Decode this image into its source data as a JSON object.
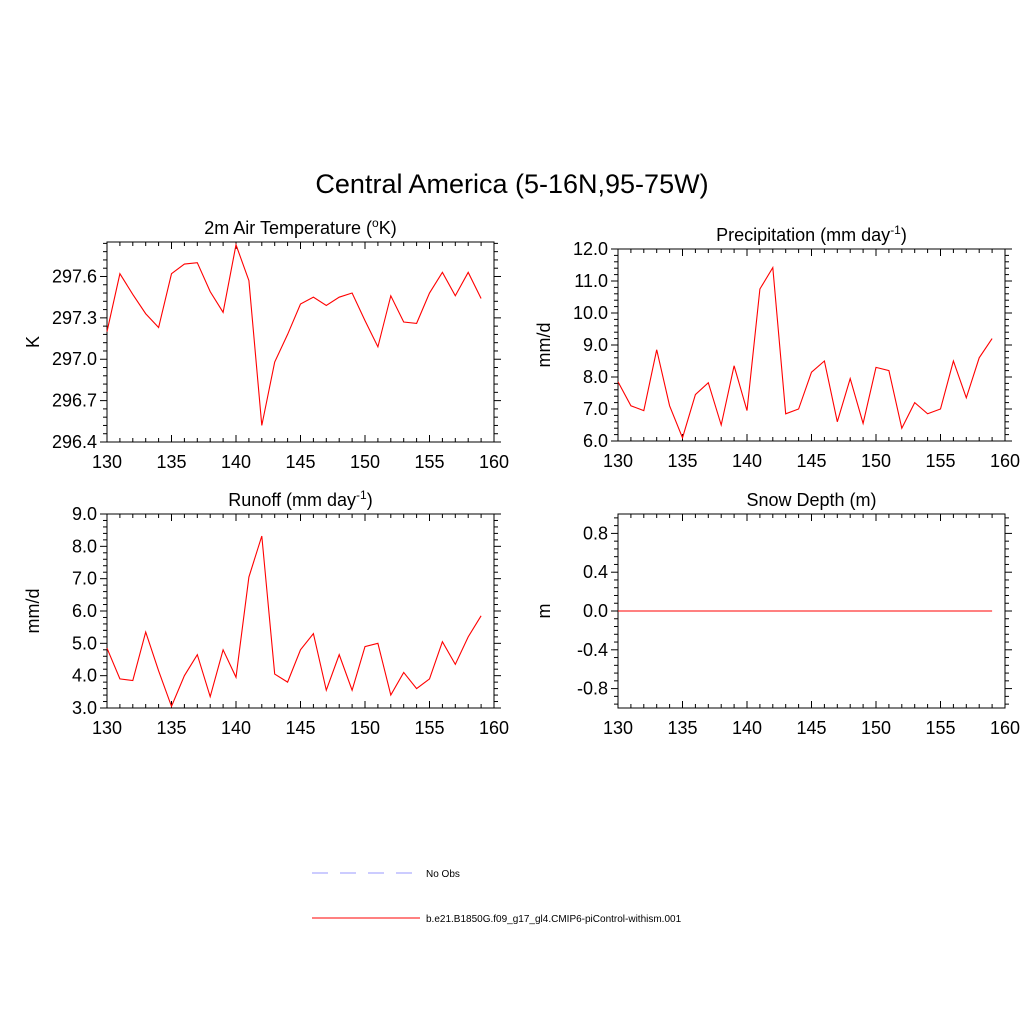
{
  "figure": {
    "title": "Central America (5-16N,95-75W)"
  },
  "legend": {
    "items": [
      {
        "label": "No Obs",
        "color": "#9999ff",
        "dash": "dashed"
      },
      {
        "label": "b.e21.B1850G.f09_g17_gl4.CMIP6-piControl-withism.001",
        "color": "#ff0000",
        "dash": "solid"
      }
    ]
  },
  "chart_data": [
    {
      "type": "line",
      "title": "2m Air Temperature (oK)",
      "title_parts": [
        "2m Air Temperature (",
        "o",
        "K)"
      ],
      "ylabel": "K",
      "xlim": [
        130,
        160
      ],
      "ylim": [
        296.4,
        297.85
      ],
      "xticks": [
        130,
        135,
        140,
        145,
        150,
        155,
        160
      ],
      "xticklabels": [
        "130",
        "135",
        "140",
        "145",
        "150",
        "155",
        "160"
      ],
      "yticks": [
        296.4,
        296.7,
        297.0,
        297.3,
        297.6
      ],
      "yticklabels": [
        "296.4",
        "296.7",
        "297.0",
        "297.3",
        "297.6"
      ],
      "series": [
        {
          "color": "#ff0000",
          "x": [
            130,
            131,
            132,
            133,
            134,
            135,
            136,
            137,
            138,
            139,
            140,
            141,
            142,
            143,
            144,
            145,
            146,
            147,
            148,
            149,
            150,
            151,
            152,
            153,
            154,
            155,
            156,
            157,
            158,
            159
          ],
          "y": [
            297.2,
            297.62,
            297.47,
            297.33,
            297.23,
            297.62,
            297.69,
            297.7,
            297.49,
            297.34,
            297.83,
            297.57,
            296.52,
            296.98,
            297.18,
            297.4,
            297.45,
            297.39,
            297.45,
            297.48,
            297.28,
            297.09,
            297.46,
            297.27,
            297.26,
            297.48,
            297.63,
            297.46,
            297.63,
            297.44
          ]
        }
      ]
    },
    {
      "type": "line",
      "title": "Precipitation (mm day-1)",
      "title_parts": [
        "Precipitation (mm day",
        "-1",
        ")"
      ],
      "ylabel": "mm/d",
      "xlim": [
        130,
        160
      ],
      "ylim": [
        6.0,
        12.0
      ],
      "xticks": [
        130,
        135,
        140,
        145,
        150,
        155,
        160
      ],
      "xticklabels": [
        "130",
        "135",
        "140",
        "145",
        "150",
        "155",
        "160"
      ],
      "yticks": [
        6.0,
        7.0,
        8.0,
        9.0,
        10.0,
        11.0,
        12.0
      ],
      "yticklabels": [
        "6.0",
        "7.0",
        "8.0",
        "9.0",
        "10.0",
        "11.0",
        "12.0"
      ],
      "series": [
        {
          "color": "#ff0000",
          "x": [
            130,
            131,
            132,
            133,
            134,
            135,
            136,
            137,
            138,
            139,
            140,
            141,
            142,
            143,
            144,
            145,
            146,
            147,
            148,
            149,
            150,
            151,
            152,
            153,
            154,
            155,
            156,
            157,
            158,
            159
          ],
          "y": [
            7.85,
            7.1,
            6.95,
            8.85,
            7.1,
            6.1,
            7.45,
            7.82,
            6.5,
            8.35,
            6.95,
            10.75,
            11.42,
            6.85,
            7.0,
            8.15,
            8.5,
            6.6,
            7.95,
            6.55,
            8.3,
            8.2,
            6.4,
            7.2,
            6.85,
            7.0,
            8.5,
            7.35,
            8.6,
            9.2
          ]
        }
      ]
    },
    {
      "type": "line",
      "title": "Runoff (mm day-1)",
      "title_parts": [
        "Runoff (mm day",
        "-1",
        ")"
      ],
      "ylabel": "mm/d",
      "xlim": [
        130,
        160
      ],
      "ylim": [
        3.0,
        9.0
      ],
      "xticks": [
        130,
        135,
        140,
        145,
        150,
        155,
        160
      ],
      "xticklabels": [
        "130",
        "135",
        "140",
        "145",
        "150",
        "155",
        "160"
      ],
      "yticks": [
        3.0,
        4.0,
        5.0,
        6.0,
        7.0,
        8.0,
        9.0
      ],
      "yticklabels": [
        "3.0",
        "4.0",
        "5.0",
        "6.0",
        "7.0",
        "8.0",
        "9.0"
      ],
      "series": [
        {
          "color": "#ff0000",
          "x": [
            130,
            131,
            132,
            133,
            134,
            135,
            136,
            137,
            138,
            139,
            140,
            141,
            142,
            143,
            144,
            145,
            146,
            147,
            148,
            149,
            150,
            151,
            152,
            153,
            154,
            155,
            156,
            157,
            158,
            159
          ],
          "y": [
            4.85,
            3.9,
            3.85,
            5.35,
            4.15,
            3.05,
            4.0,
            4.65,
            3.35,
            4.8,
            3.95,
            7.05,
            8.32,
            4.05,
            3.8,
            4.8,
            5.3,
            3.55,
            4.65,
            3.55,
            4.9,
            5.0,
            3.4,
            4.1,
            3.6,
            3.9,
            5.05,
            4.35,
            5.2,
            5.85
          ]
        }
      ]
    },
    {
      "type": "line",
      "title": "Snow Depth (m)",
      "title_parts": [
        "Snow Depth (m)",
        "",
        ""
      ],
      "ylabel": "m",
      "xlim": [
        130,
        160
      ],
      "ylim": [
        -1.0,
        1.0
      ],
      "xticks": [
        130,
        135,
        140,
        145,
        150,
        155,
        160
      ],
      "xticklabels": [
        "130",
        "135",
        "140",
        "145",
        "150",
        "155",
        "160"
      ],
      "yticks": [
        -0.8,
        -0.4,
        0.0,
        0.4,
        0.8
      ],
      "yticklabels": [
        "-0.8",
        "-0.4",
        "0.0",
        "0.4",
        "0.8"
      ],
      "series": [
        {
          "color": "#ff0000",
          "x": [
            130,
            159
          ],
          "y": [
            0.0,
            0.0
          ]
        }
      ]
    }
  ]
}
